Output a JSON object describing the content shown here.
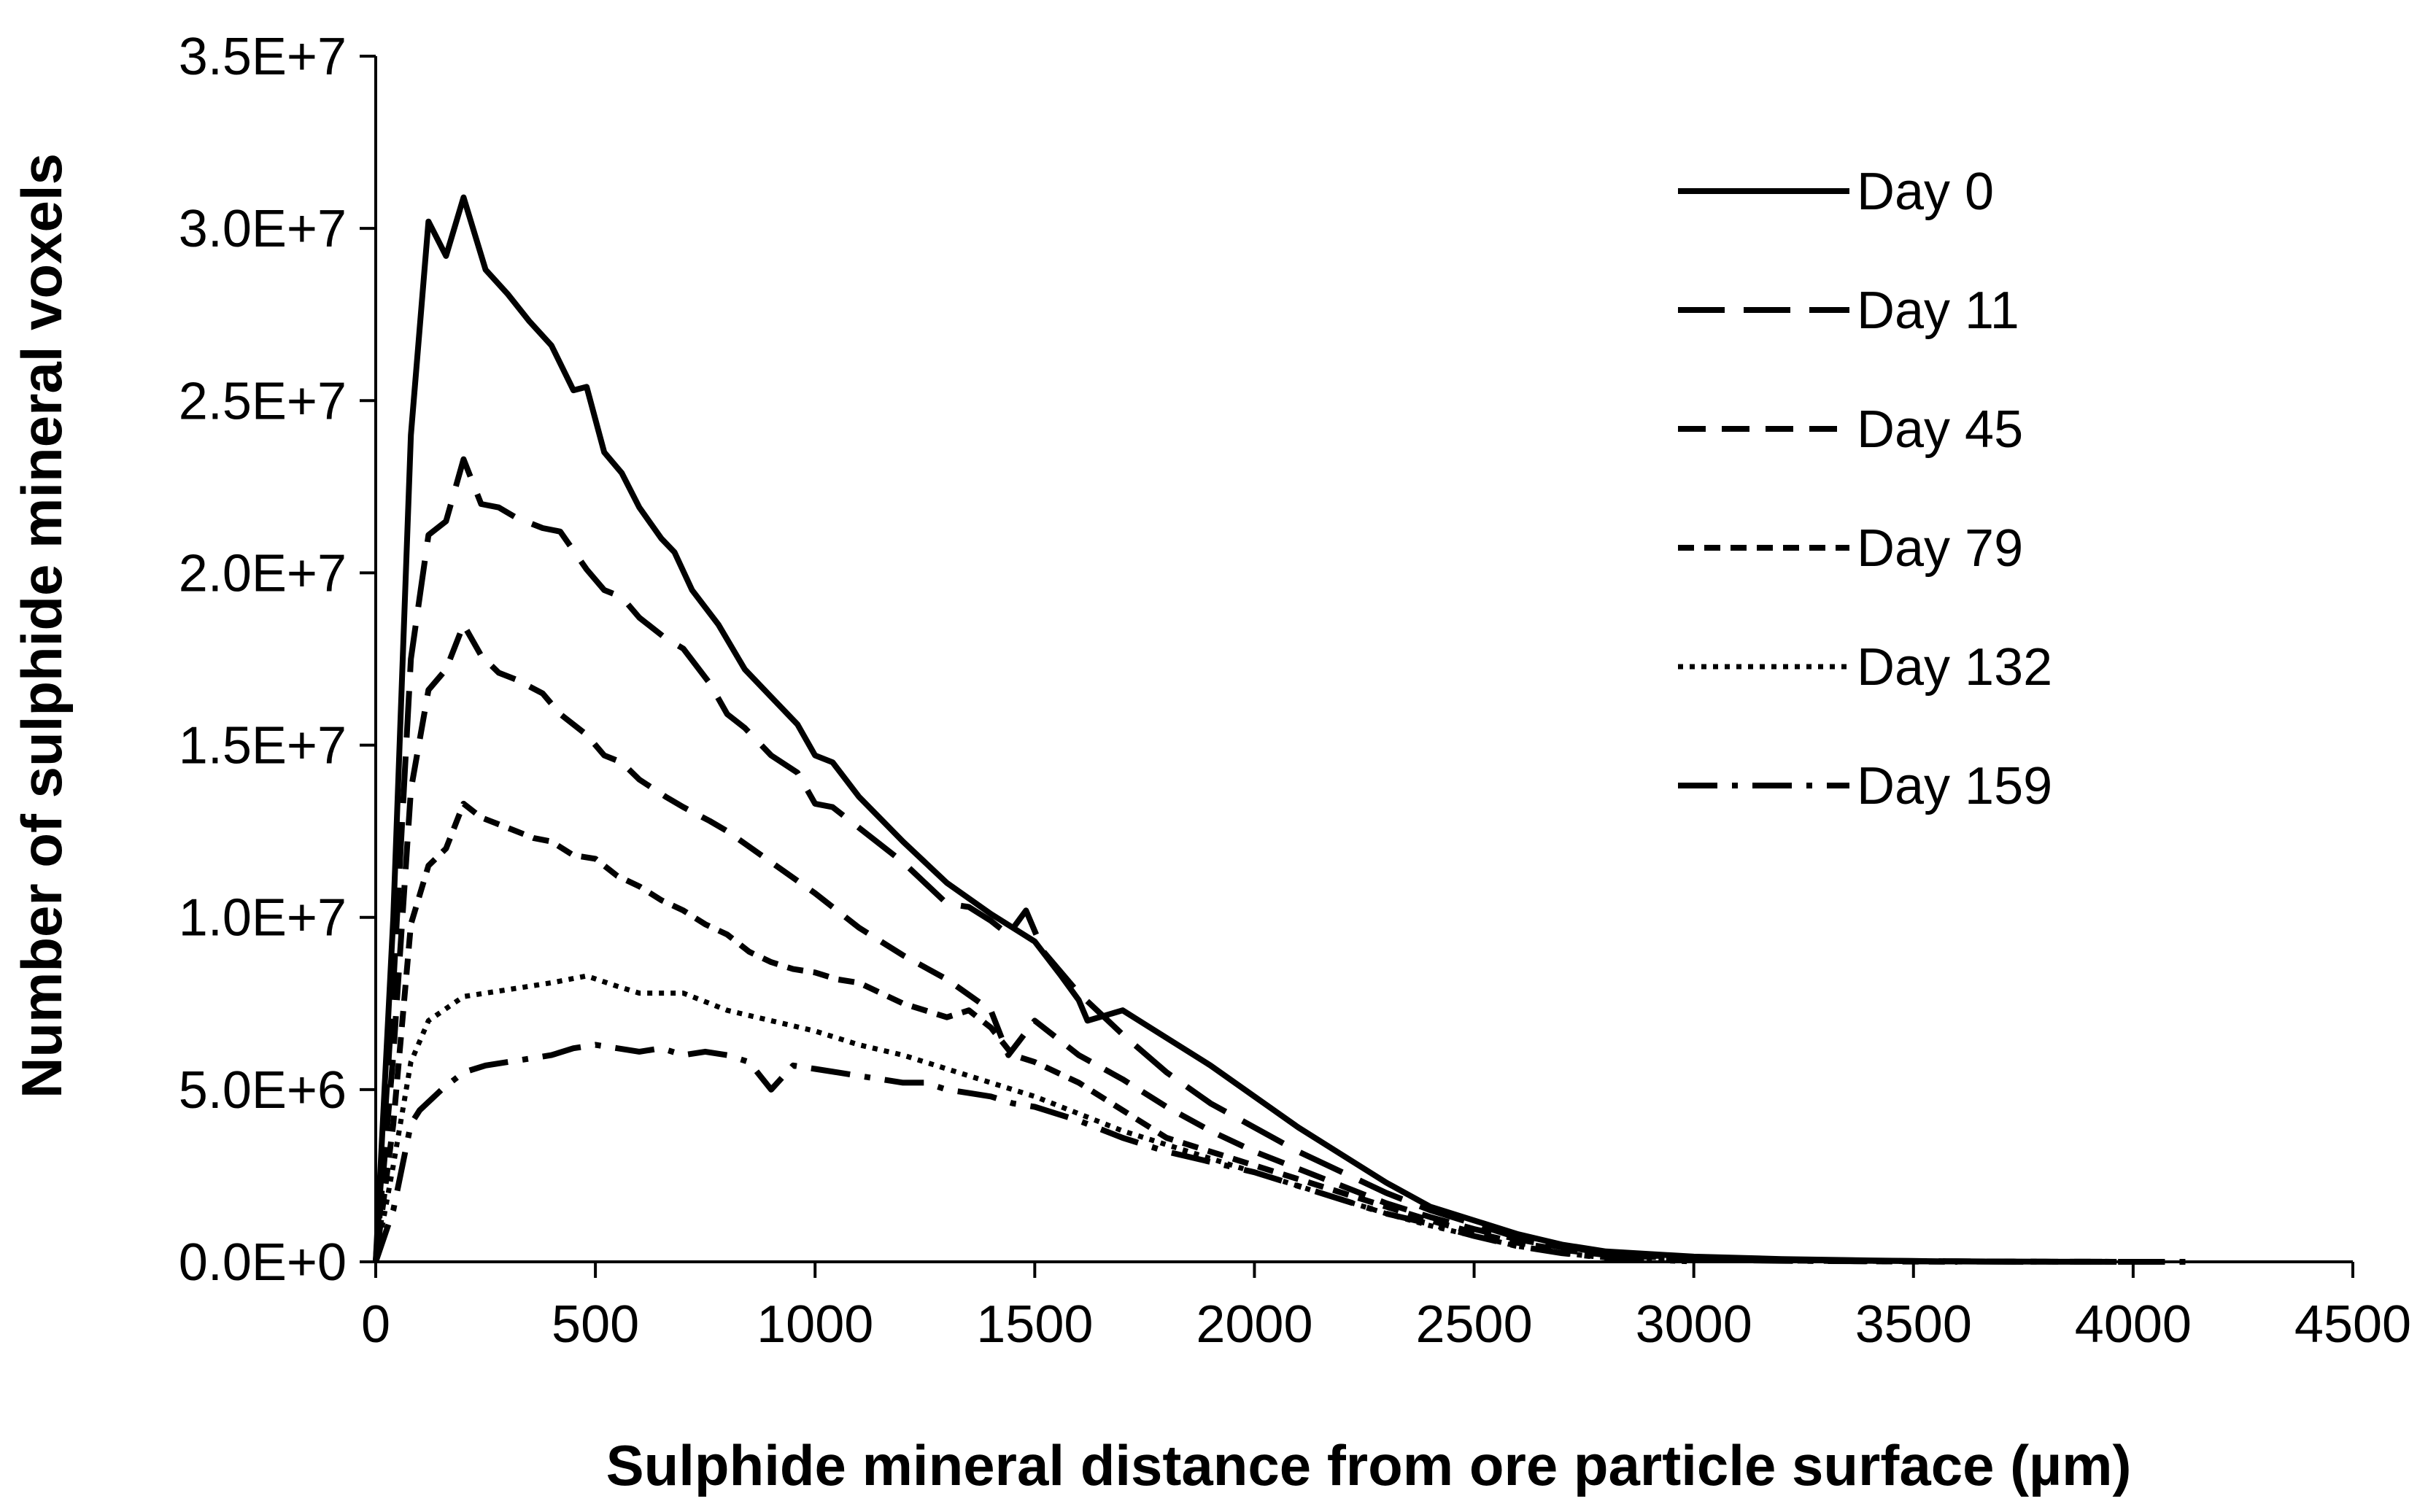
{
  "chart_data": {
    "type": "line",
    "title": "",
    "xlabel": "Sulphide mineral distance from ore particle surface (µm)",
    "ylabel": "Number of sulphide mineral voxels",
    "xlim": [
      0,
      4500
    ],
    "ylim": [
      0,
      35000000
    ],
    "x_ticks": [
      0,
      500,
      1000,
      1500,
      2000,
      2500,
      3000,
      3500,
      4000,
      4500
    ],
    "x_tick_labels": [
      "0",
      "500",
      "1000",
      "1500",
      "2000",
      "2500",
      "3000",
      "3500",
      "4000",
      "4500"
    ],
    "y_ticks": [
      0,
      5000000,
      10000000,
      15000000,
      20000000,
      25000000,
      30000000,
      35000000
    ],
    "y_tick_labels": [
      "0.0E+0",
      "5.0E+6",
      "1.0E+7",
      "1.5E+7",
      "2.0E+7",
      "2.5E+7",
      "3.0E+7",
      "3.5E+7"
    ],
    "grid": false,
    "legend_position": "top-right",
    "series": [
      {
        "name": "Day 0",
        "style": "solid",
        "x": [
          0,
          40,
          80,
          120,
          160,
          200,
          250,
          300,
          350,
          400,
          450,
          480,
          520,
          560,
          600,
          650,
          680,
          720,
          780,
          840,
          900,
          960,
          1000,
          1040,
          1100,
          1200,
          1300,
          1400,
          1500,
          1560,
          1600,
          1620,
          1700,
          1800,
          1900,
          2000,
          2100,
          2200,
          2300,
          2400,
          2500,
          2600,
          2700,
          2800,
          3000,
          3200,
          3400,
          3600,
          3750
        ],
        "y": [
          0,
          10000000,
          24000000,
          30200000,
          29200000,
          30900000,
          28800000,
          28100000,
          27300000,
          26600000,
          25300000,
          25400000,
          23500000,
          22900000,
          21900000,
          21000000,
          20600000,
          19500000,
          18500000,
          17200000,
          16400000,
          15600000,
          14700000,
          14500000,
          13500000,
          12200000,
          11000000,
          10100000,
          9300000,
          8300000,
          7600000,
          7000000,
          7300000,
          6500000,
          5700000,
          4800000,
          3900000,
          3100000,
          2300000,
          1600000,
          1200000,
          800000,
          500000,
          300000,
          150000,
          80000,
          40000,
          10000,
          0
        ]
      },
      {
        "name": "Day 11",
        "style": "long-dash",
        "x": [
          0,
          40,
          80,
          120,
          160,
          200,
          240,
          280,
          320,
          380,
          420,
          480,
          520,
          560,
          600,
          660,
          700,
          760,
          800,
          840,
          900,
          960,
          1000,
          1040,
          1100,
          1200,
          1300,
          1350,
          1400,
          1440,
          1480,
          1520,
          1600,
          1700,
          1800,
          1900,
          2000,
          2100,
          2200,
          2300,
          2400,
          2500,
          2600,
          2700,
          2800,
          3000,
          3200,
          3400,
          3600,
          3800,
          4000
        ],
        "y": [
          0,
          8000000,
          17500000,
          21100000,
          21500000,
          23300000,
          22000000,
          21900000,
          21600000,
          21300000,
          21200000,
          20100000,
          19500000,
          19300000,
          18700000,
          18100000,
          17800000,
          16800000,
          15900000,
          15500000,
          14700000,
          14200000,
          13300000,
          13200000,
          12600000,
          11600000,
          10400000,
          10300000,
          9900000,
          9500000,
          10200000,
          9000000,
          7800000,
          6600000,
          5500000,
          4600000,
          3900000,
          3200000,
          2600000,
          2000000,
          1500000,
          1100000,
          700000,
          450000,
          250000,
          120000,
          60000,
          30000,
          15000,
          5000,
          0
        ]
      },
      {
        "name": "Day 45",
        "style": "dash",
        "x": [
          0,
          40,
          80,
          120,
          160,
          200,
          240,
          280,
          320,
          380,
          420,
          480,
          520,
          560,
          600,
          660,
          700,
          760,
          800,
          900,
          1000,
          1100,
          1200,
          1300,
          1400,
          1440,
          1500,
          1600,
          1700,
          1800,
          1900,
          2000,
          2100,
          2200,
          2300,
          2400,
          2500,
          2600,
          2700,
          2800,
          3000,
          3200,
          3400,
          3600,
          3800,
          4000
        ],
        "y": [
          0,
          6000000,
          13700000,
          16600000,
          17200000,
          18500000,
          17600000,
          17100000,
          16900000,
          16500000,
          15900000,
          15300000,
          14700000,
          14500000,
          14000000,
          13500000,
          13200000,
          12800000,
          12500000,
          11600000,
          10700000,
          9700000,
          8900000,
          8200000,
          7300000,
          6000000,
          7000000,
          6000000,
          5300000,
          4500000,
          3800000,
          3200000,
          2700000,
          2200000,
          1700000,
          1300000,
          950000,
          650000,
          420000,
          250000,
          120000,
          60000,
          30000,
          15000,
          5000,
          0
        ]
      },
      {
        "name": "Day 79",
        "style": "short-dash",
        "x": [
          0,
          40,
          80,
          120,
          160,
          200,
          240,
          300,
          360,
          400,
          450,
          500,
          550,
          600,
          650,
          700,
          750,
          800,
          850,
          900,
          950,
          1000,
          1050,
          1100,
          1200,
          1300,
          1350,
          1400,
          1450,
          1500,
          1600,
          1700,
          1800,
          1900,
          2000,
          2100,
          2200,
          2300,
          2400,
          2500,
          2600,
          2700,
          2800,
          3000,
          3200,
          3400,
          3600
        ],
        "y": [
          0,
          4000000,
          9800000,
          11500000,
          12000000,
          13300000,
          12900000,
          12600000,
          12300000,
          12200000,
          11800000,
          11700000,
          11200000,
          10900000,
          10500000,
          10200000,
          9800000,
          9500000,
          9000000,
          8700000,
          8500000,
          8400000,
          8200000,
          8100000,
          7500000,
          7100000,
          7300000,
          6800000,
          6000000,
          5800000,
          5200000,
          4400000,
          3600000,
          3200000,
          2800000,
          2400000,
          2000000,
          1600000,
          1200000,
          850000,
          550000,
          350000,
          200000,
          90000,
          40000,
          15000,
          0
        ]
      },
      {
        "name": "Day 132",
        "style": "dotted",
        "x": [
          0,
          40,
          80,
          120,
          200,
          300,
          400,
          480,
          550,
          600,
          700,
          800,
          900,
          1000,
          1100,
          1200,
          1300,
          1400,
          1500,
          1600,
          1700,
          1800,
          1900,
          2000,
          2100,
          2200,
          2300,
          2400,
          2500,
          2600,
          2700,
          2800,
          2900,
          3000
        ],
        "y": [
          0,
          2800000,
          5800000,
          7000000,
          7700000,
          7900000,
          8100000,
          8300000,
          8000000,
          7800000,
          7800000,
          7300000,
          7000000,
          6700000,
          6300000,
          6000000,
          5600000,
          5200000,
          4800000,
          4300000,
          3800000,
          3400000,
          3000000,
          2600000,
          2200000,
          1800000,
          1400000,
          1050000,
          750000,
          450000,
          250000,
          120000,
          50000,
          0
        ]
      },
      {
        "name": "Day 159",
        "style": "dash-dot",
        "x": [
          0,
          40,
          80,
          100,
          150,
          200,
          250,
          300,
          350,
          400,
          450,
          500,
          550,
          600,
          650,
          700,
          750,
          800,
          850,
          900,
          950,
          1000,
          1050,
          1100,
          1150,
          1200,
          1250,
          1300,
          1350,
          1400,
          1450,
          1500,
          1550,
          1600,
          1700,
          1800,
          1900,
          2000,
          2100,
          2200,
          2300,
          2400,
          2500,
          2600,
          2700,
          2800,
          3000,
          3200,
          3400,
          3600,
          3800,
          4000,
          4150
        ],
        "y": [
          0,
          1500000,
          4000000,
          4400000,
          5000000,
          5500000,
          5700000,
          5800000,
          5900000,
          6000000,
          6200000,
          6300000,
          6200000,
          6100000,
          6200000,
          6000000,
          6100000,
          6000000,
          5800000,
          5000000,
          5700000,
          5600000,
          5500000,
          5400000,
          5300000,
          5200000,
          5200000,
          5000000,
          4900000,
          4800000,
          4600000,
          4500000,
          4300000,
          4100000,
          3600000,
          3200000,
          2900000,
          2600000,
          2200000,
          1800000,
          1400000,
          1100000,
          750000,
          450000,
          250000,
          120000,
          60000,
          30000,
          15000,
          8000,
          4000,
          1000,
          0
        ]
      }
    ]
  }
}
